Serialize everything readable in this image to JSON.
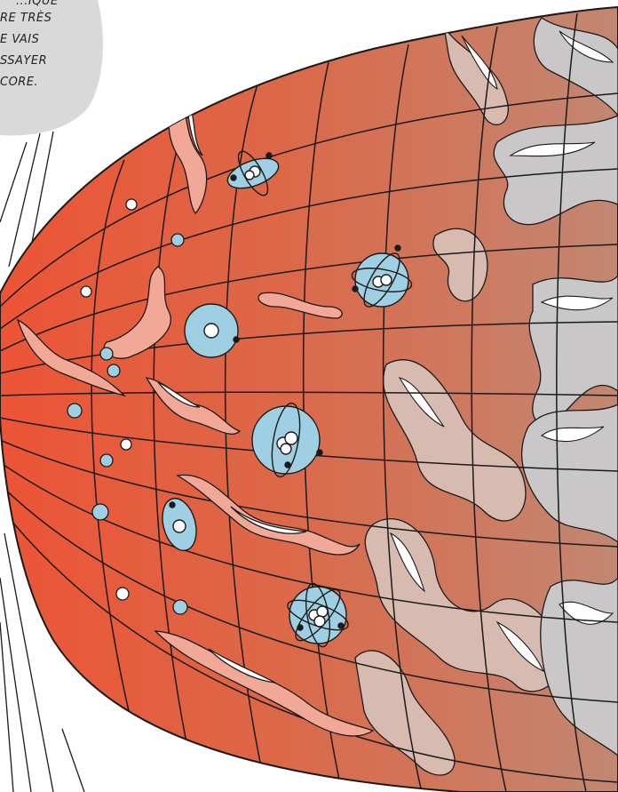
{
  "speech_bubble": {
    "lines": [
      "...IQUE",
      "RE TRÈS",
      "E VAIS",
      "SSAYER",
      "CORE."
    ]
  },
  "colors": {
    "universe_red": "#e8583a",
    "universe_brown": "#c4826a",
    "atom_blue": "#9fcfe2",
    "wave_pink": "#f1a896",
    "wave_grey": "#c9c7c7",
    "bubble_grey": "#d9d9d9",
    "ink": "#1a1a1a"
  },
  "icons": [
    "atom-icon",
    "galaxy-cloud-icon",
    "particle-dot-icon"
  ]
}
